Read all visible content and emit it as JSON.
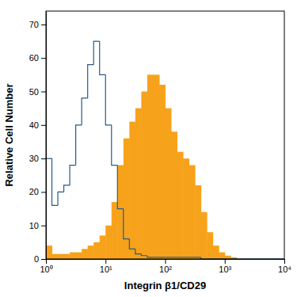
{
  "chart_data": {
    "type": "histogram",
    "x_label": "Integrin β1/CD29",
    "y_label": "Relative Cell Number",
    "log": "x",
    "bins": [
      1,
      1.259,
      1.585,
      1.995,
      2.512,
      3.162,
      3.981,
      5.012,
      6.31,
      7.943,
      10,
      12.59,
      15.85,
      19.95,
      25.12,
      31.62,
      39.81,
      50.12,
      63.1,
      79.43,
      100,
      125.9,
      158.5,
      199.5,
      251.2,
      316.2,
      398.1,
      501.2,
      631,
      794.3,
      1000,
      1259,
      1585,
      1995,
      2512,
      3162,
      3981,
      5012,
      6310,
      7943,
      10000
    ],
    "series": [
      {
        "type": "area",
        "color": "#f7a21b",
        "values": [
          4,
          1.5,
          1.5,
          1.5,
          2,
          2,
          3,
          4,
          5,
          7,
          10,
          17,
          28,
          36,
          41,
          45,
          50,
          55,
          55,
          52,
          45,
          38,
          32,
          30,
          28,
          22,
          14,
          8,
          4,
          2,
          1,
          0.5,
          0,
          0,
          0,
          0,
          0,
          0,
          0,
          0
        ]
      },
      {
        "type": "step",
        "color": "#2b5b84",
        "values": [
          30,
          16,
          20,
          22,
          28,
          40,
          48,
          58,
          65,
          55,
          40,
          28,
          15,
          6,
          3,
          1.5,
          1,
          0.5,
          0.5,
          0.5,
          0.5,
          0.5,
          0.5,
          0.5,
          0.5,
          0.5,
          0,
          0,
          0,
          0,
          0,
          0,
          0,
          0,
          0,
          0,
          0,
          0,
          0,
          0
        ]
      }
    ],
    "xlim": [
      1,
      10000
    ],
    "xticks": [
      {
        "value": 1,
        "label": "10⁰"
      },
      {
        "value": 10,
        "label": "10¹"
      },
      {
        "value": 100,
        "label": "10²"
      },
      {
        "value": 1000,
        "label": "10³"
      },
      {
        "value": 10000,
        "label": "10⁴"
      }
    ],
    "ylim": [
      0,
      74
    ],
    "yticks": [
      0,
      10,
      20,
      30,
      40,
      50,
      60,
      70
    ]
  }
}
